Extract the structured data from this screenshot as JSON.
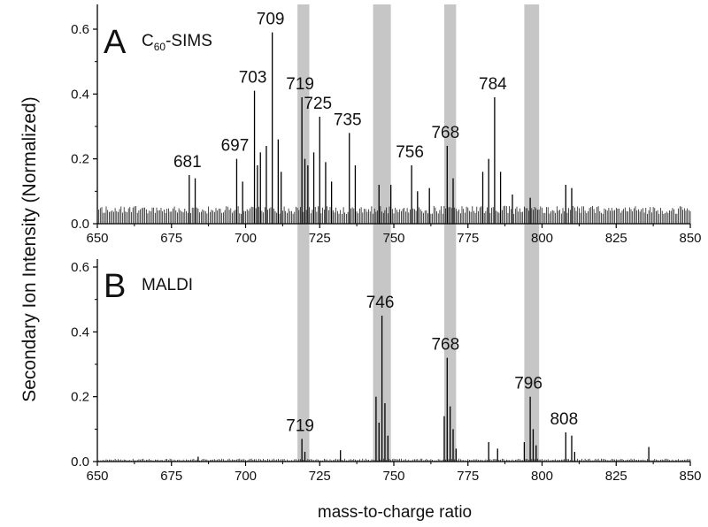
{
  "chart_data": {
    "type": "line",
    "xlabel": "mass-to-charge ratio",
    "ylabel": "Secondary Ion Intensity (Normalized)",
    "xlim": [
      650,
      850
    ],
    "x_ticks": [
      "650",
      "675",
      "700",
      "725",
      "750",
      "775",
      "800",
      "825",
      "850"
    ],
    "highlight_bands": [
      [
        717.5,
        721.5
      ],
      [
        743,
        749
      ],
      [
        767,
        771
      ],
      [
        794,
        799
      ]
    ],
    "highlight_color": "#c6c6c6",
    "line_color": "#000000",
    "panels": [
      {
        "letter": "A",
        "name_main": "C",
        "name_sub": "60",
        "name_rest": "-SIMS",
        "ylim": [
          0,
          0.6
        ],
        "y_ticks": [
          "0.0",
          "0.2",
          "0.4",
          "0.6"
        ],
        "baseline": 0.03,
        "baseline_noise": 0.025,
        "series": [
          {
            "x": 681,
            "y": 0.15,
            "label": "681"
          },
          {
            "x": 683,
            "y": 0.14
          },
          {
            "x": 697,
            "y": 0.2,
            "label": "697"
          },
          {
            "x": 699,
            "y": 0.13
          },
          {
            "x": 703,
            "y": 0.41,
            "label": "703"
          },
          {
            "x": 704,
            "y": 0.18
          },
          {
            "x": 705,
            "y": 0.22
          },
          {
            "x": 707,
            "y": 0.24
          },
          {
            "x": 709,
            "y": 0.59,
            "label": "709"
          },
          {
            "x": 711,
            "y": 0.26
          },
          {
            "x": 712,
            "y": 0.16
          },
          {
            "x": 719,
            "y": 0.39,
            "label": "719"
          },
          {
            "x": 720,
            "y": 0.2
          },
          {
            "x": 721,
            "y": 0.18
          },
          {
            "x": 723,
            "y": 0.22
          },
          {
            "x": 725,
            "y": 0.33,
            "label": "725"
          },
          {
            "x": 727,
            "y": 0.19
          },
          {
            "x": 729,
            "y": 0.13
          },
          {
            "x": 735,
            "y": 0.28,
            "label": "735"
          },
          {
            "x": 737,
            "y": 0.18
          },
          {
            "x": 745,
            "y": 0.12
          },
          {
            "x": 749,
            "y": 0.12
          },
          {
            "x": 756,
            "y": 0.18,
            "label": "756"
          },
          {
            "x": 758,
            "y": 0.1
          },
          {
            "x": 762,
            "y": 0.11
          },
          {
            "x": 768,
            "y": 0.24,
            "label": "768"
          },
          {
            "x": 770,
            "y": 0.14
          },
          {
            "x": 780,
            "y": 0.16
          },
          {
            "x": 782,
            "y": 0.2
          },
          {
            "x": 784,
            "y": 0.39,
            "label": "784"
          },
          {
            "x": 786,
            "y": 0.16
          },
          {
            "x": 790,
            "y": 0.09
          },
          {
            "x": 796,
            "y": 0.08
          },
          {
            "x": 808,
            "y": 0.12
          },
          {
            "x": 810,
            "y": 0.11
          }
        ]
      },
      {
        "letter": "B",
        "name_main": "MALDI",
        "name_sub": "",
        "name_rest": "",
        "ylim": [
          0,
          0.6
        ],
        "y_ticks": [
          "0.0",
          "0.2",
          "0.4",
          "0.6"
        ],
        "baseline": 0.003,
        "baseline_noise": 0.006,
        "series": [
          {
            "x": 684,
            "y": 0.015
          },
          {
            "x": 719,
            "y": 0.07,
            "label": "719"
          },
          {
            "x": 720,
            "y": 0.03
          },
          {
            "x": 732,
            "y": 0.035
          },
          {
            "x": 744,
            "y": 0.2
          },
          {
            "x": 745,
            "y": 0.12
          },
          {
            "x": 746,
            "y": 0.45,
            "label": "746"
          },
          {
            "x": 747,
            "y": 0.18
          },
          {
            "x": 748,
            "y": 0.08
          },
          {
            "x": 767,
            "y": 0.14
          },
          {
            "x": 768,
            "y": 0.32,
            "label": "768"
          },
          {
            "x": 769,
            "y": 0.17
          },
          {
            "x": 770,
            "y": 0.1
          },
          {
            "x": 771,
            "y": 0.04
          },
          {
            "x": 782,
            "y": 0.06
          },
          {
            "x": 785,
            "y": 0.04
          },
          {
            "x": 794,
            "y": 0.06
          },
          {
            "x": 796,
            "y": 0.2,
            "label": "796"
          },
          {
            "x": 797,
            "y": 0.1
          },
          {
            "x": 798,
            "y": 0.05
          },
          {
            "x": 808,
            "y": 0.09,
            "label": "808"
          },
          {
            "x": 810,
            "y": 0.08
          },
          {
            "x": 811,
            "y": 0.03
          },
          {
            "x": 836,
            "y": 0.045
          }
        ]
      }
    ]
  }
}
